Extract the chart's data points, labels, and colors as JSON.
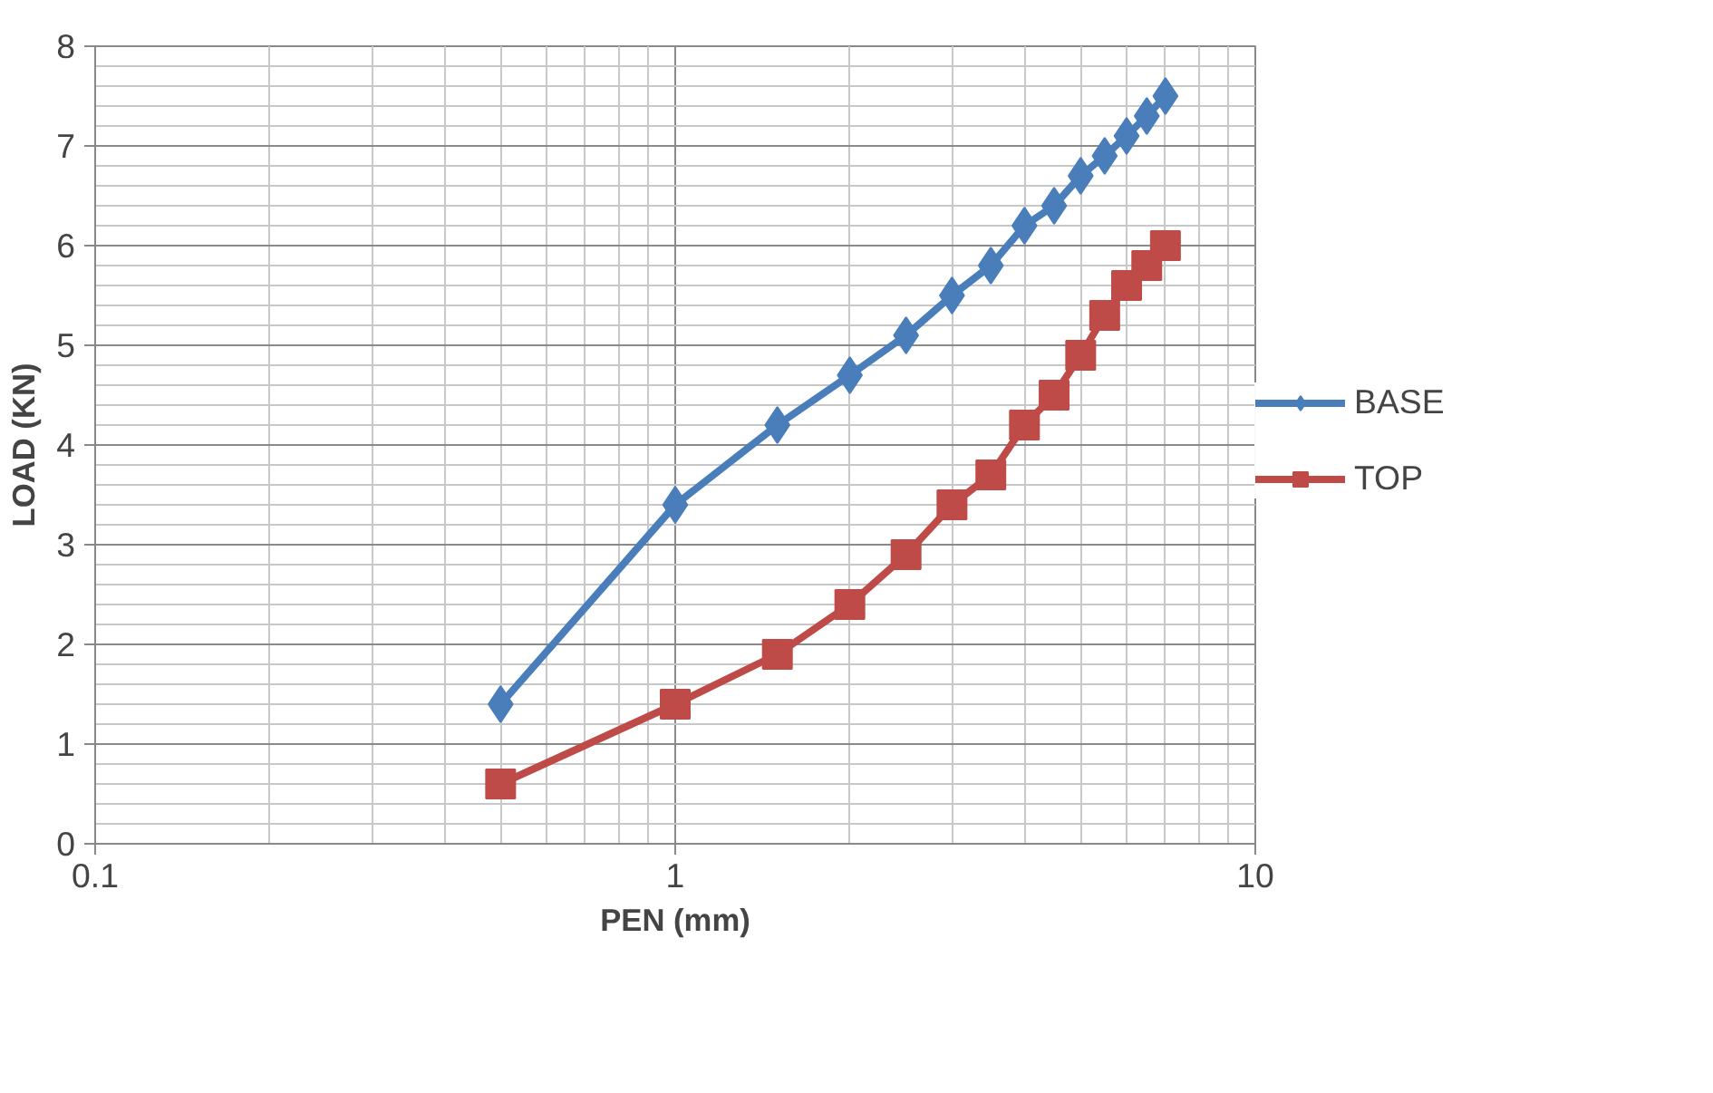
{
  "chart_data": {
    "type": "line",
    "xlabel": "PEN (mm)",
    "ylabel": "LOAD (KN)",
    "log": "x",
    "xlim": [
      0.1,
      10
    ],
    "ylim": [
      0,
      8
    ],
    "xticks": [
      0.1,
      1,
      10
    ],
    "yticks": [
      0,
      1,
      2,
      3,
      4,
      5,
      6,
      7,
      8
    ],
    "grid": true,
    "legend": "right",
    "line_style": "solid",
    "x": [
      0.5,
      1,
      1.5,
      2,
      2.5,
      3,
      3.5,
      4,
      4.5,
      5,
      5.5,
      6,
      6.5,
      7
    ],
    "series": [
      {
        "name": "BASE",
        "color": "#4a7ebb",
        "marker": "diamond",
        "values": [
          1.4,
          3.4,
          4.2,
          4.7,
          5.1,
          5.5,
          5.8,
          6.2,
          6.4,
          6.7,
          6.9,
          7.1,
          7.3,
          7.5
        ]
      },
      {
        "name": "TOP",
        "color": "#be4b48",
        "marker": "square",
        "values": [
          0.6,
          1.4,
          1.9,
          2.4,
          2.9,
          3.4,
          3.7,
          4.2,
          4.5,
          4.9,
          5.3,
          5.6,
          5.8,
          6.0
        ]
      }
    ]
  }
}
